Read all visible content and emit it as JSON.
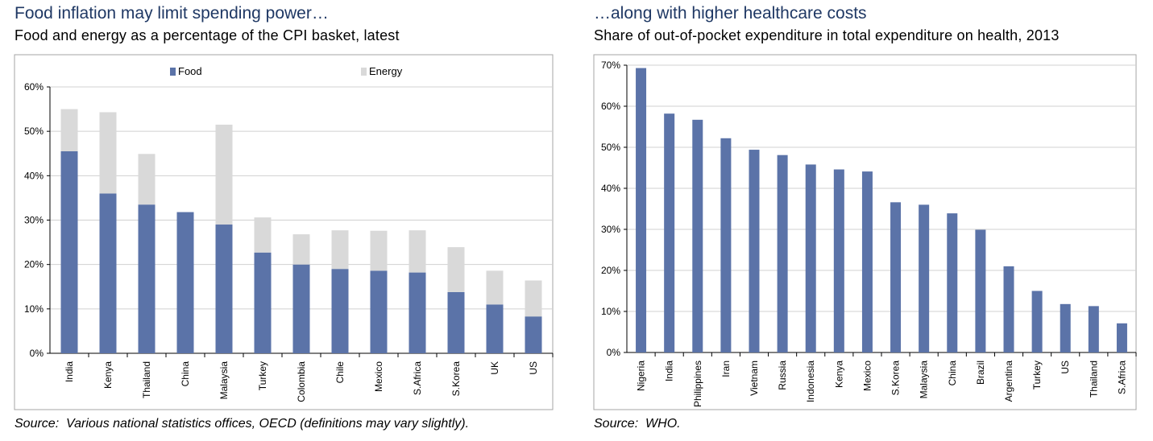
{
  "colors": {
    "food": "#5b73a8",
    "energy": "#d9d9d9",
    "title": "#1f3864",
    "grid": "#d0d0d0"
  },
  "left": {
    "title": "Food inflation may limit spending power…",
    "subtitle": "Food and energy as a percentage of the CPI basket, latest",
    "source": "Source:  Various national statistics offices, OECD (definitions may vary slightly)."
  },
  "right": {
    "title": "…along with higher healthcare costs",
    "subtitle": "Share of out-of-pocket expenditure in total expenditure on health, 2013",
    "source": "Source:  WHO."
  },
  "chart_data": [
    {
      "type": "bar",
      "stacked": true,
      "title": "Food and energy as a percentage of the CPI basket, latest",
      "categories": [
        "India",
        "Kenya",
        "Thailand",
        "China",
        "Malaysia",
        "Turkey",
        "Colombia",
        "Chile",
        "Mexico",
        "S.Africa",
        "S.Korea",
        "UK",
        "US"
      ],
      "series": [
        {
          "name": "Food",
          "values": [
            45.5,
            36.0,
            33.5,
            31.8,
            29.0,
            22.7,
            20.0,
            19.0,
            18.6,
            18.2,
            13.8,
            11.0,
            8.3
          ]
        },
        {
          "name": "Energy",
          "values": [
            9.5,
            18.3,
            11.4,
            0,
            22.5,
            7.9,
            6.8,
            8.7,
            9.0,
            9.5,
            10.1,
            7.6,
            8.1
          ]
        }
      ],
      "yticks": [
        "0%",
        "10%",
        "20%",
        "30%",
        "40%",
        "50%",
        "60%"
      ],
      "ylim": [
        0,
        60
      ],
      "grid": true,
      "legend": "top"
    },
    {
      "type": "bar",
      "title": "Share of out-of-pocket expenditure in total expenditure on health, 2013",
      "categories": [
        "Nigeria",
        "India",
        "Philippines",
        "Iran",
        "Vietnam",
        "Russia",
        "Indonesia",
        "Kenya",
        "Mexico",
        "S.Korea",
        "Malaysia",
        "China",
        "Brazil",
        "Argentina",
        "Turkey",
        "US",
        "Thailand",
        "S.Africa"
      ],
      "values": [
        69.3,
        58.2,
        56.7,
        52.2,
        49.4,
        48.1,
        45.8,
        44.6,
        44.1,
        36.6,
        36.0,
        33.9,
        29.9,
        21.0,
        15.0,
        11.8,
        11.3,
        7.1
      ],
      "yticks": [
        "0%",
        "10%",
        "20%",
        "30%",
        "40%",
        "50%",
        "60%",
        "70%"
      ],
      "ylim": [
        0,
        70
      ],
      "grid": true
    }
  ]
}
